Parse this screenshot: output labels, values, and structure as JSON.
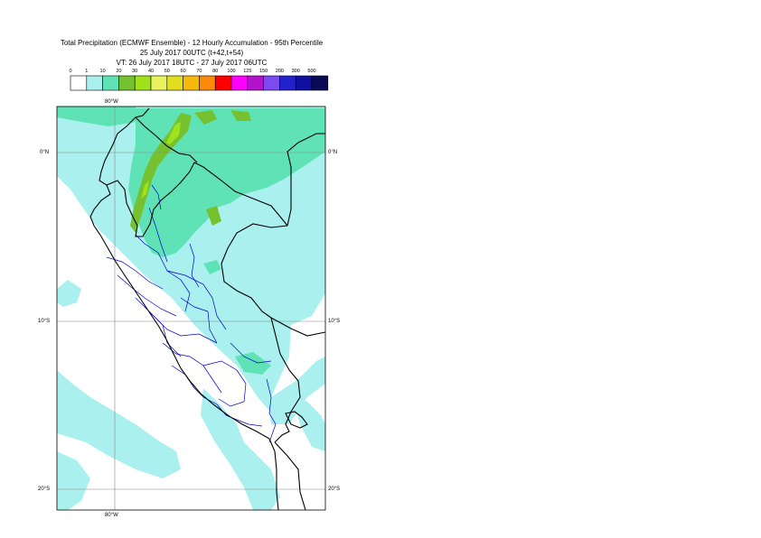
{
  "title": {
    "line1": "Total Precipitation (ECMWF Ensemble) - 12 Hourly Accumulation - 95th Percentile",
    "line2": "25 July 2017 00UTC (t+42,t+54)",
    "line3": "VT: 26 July 2017 18UTC - 27 July 2017 06UTC"
  },
  "legend": {
    "ticks": [
      "0",
      "1",
      "10",
      "20",
      "30",
      "40",
      "50",
      "60",
      "70",
      "80",
      "100",
      "125",
      "150",
      "200",
      "300",
      "500"
    ],
    "colors": [
      "#ffffff",
      "#aaf0ee",
      "#5fe3b6",
      "#76c12f",
      "#9fe21a",
      "#e7f25e",
      "#e1de1e",
      "#f7b90c",
      "#fb8a0a",
      "#ff0000",
      "#ff00ff",
      "#b413ce",
      "#7b4bf0",
      "#2222cc",
      "#1010a0",
      "#0a0a55"
    ]
  },
  "map": {
    "lon_label_top": "80°W",
    "lon_label_bottom": "80°W",
    "lat_labels": [
      "0°N",
      "10°S",
      "20°S"
    ],
    "extent": {
      "west": -81.9,
      "east": -66.1,
      "north": 2.6,
      "south": -21.1
    }
  },
  "colors": {
    "frame": "#000000",
    "coast": "#000000",
    "admin": "#0000cc",
    "grid": "#888888",
    "light_precip": "#aaf0ee",
    "medium_precip": "#5fe3b6",
    "heavy_precip": "#76c12f",
    "peak_precip": "#9fe21a"
  }
}
